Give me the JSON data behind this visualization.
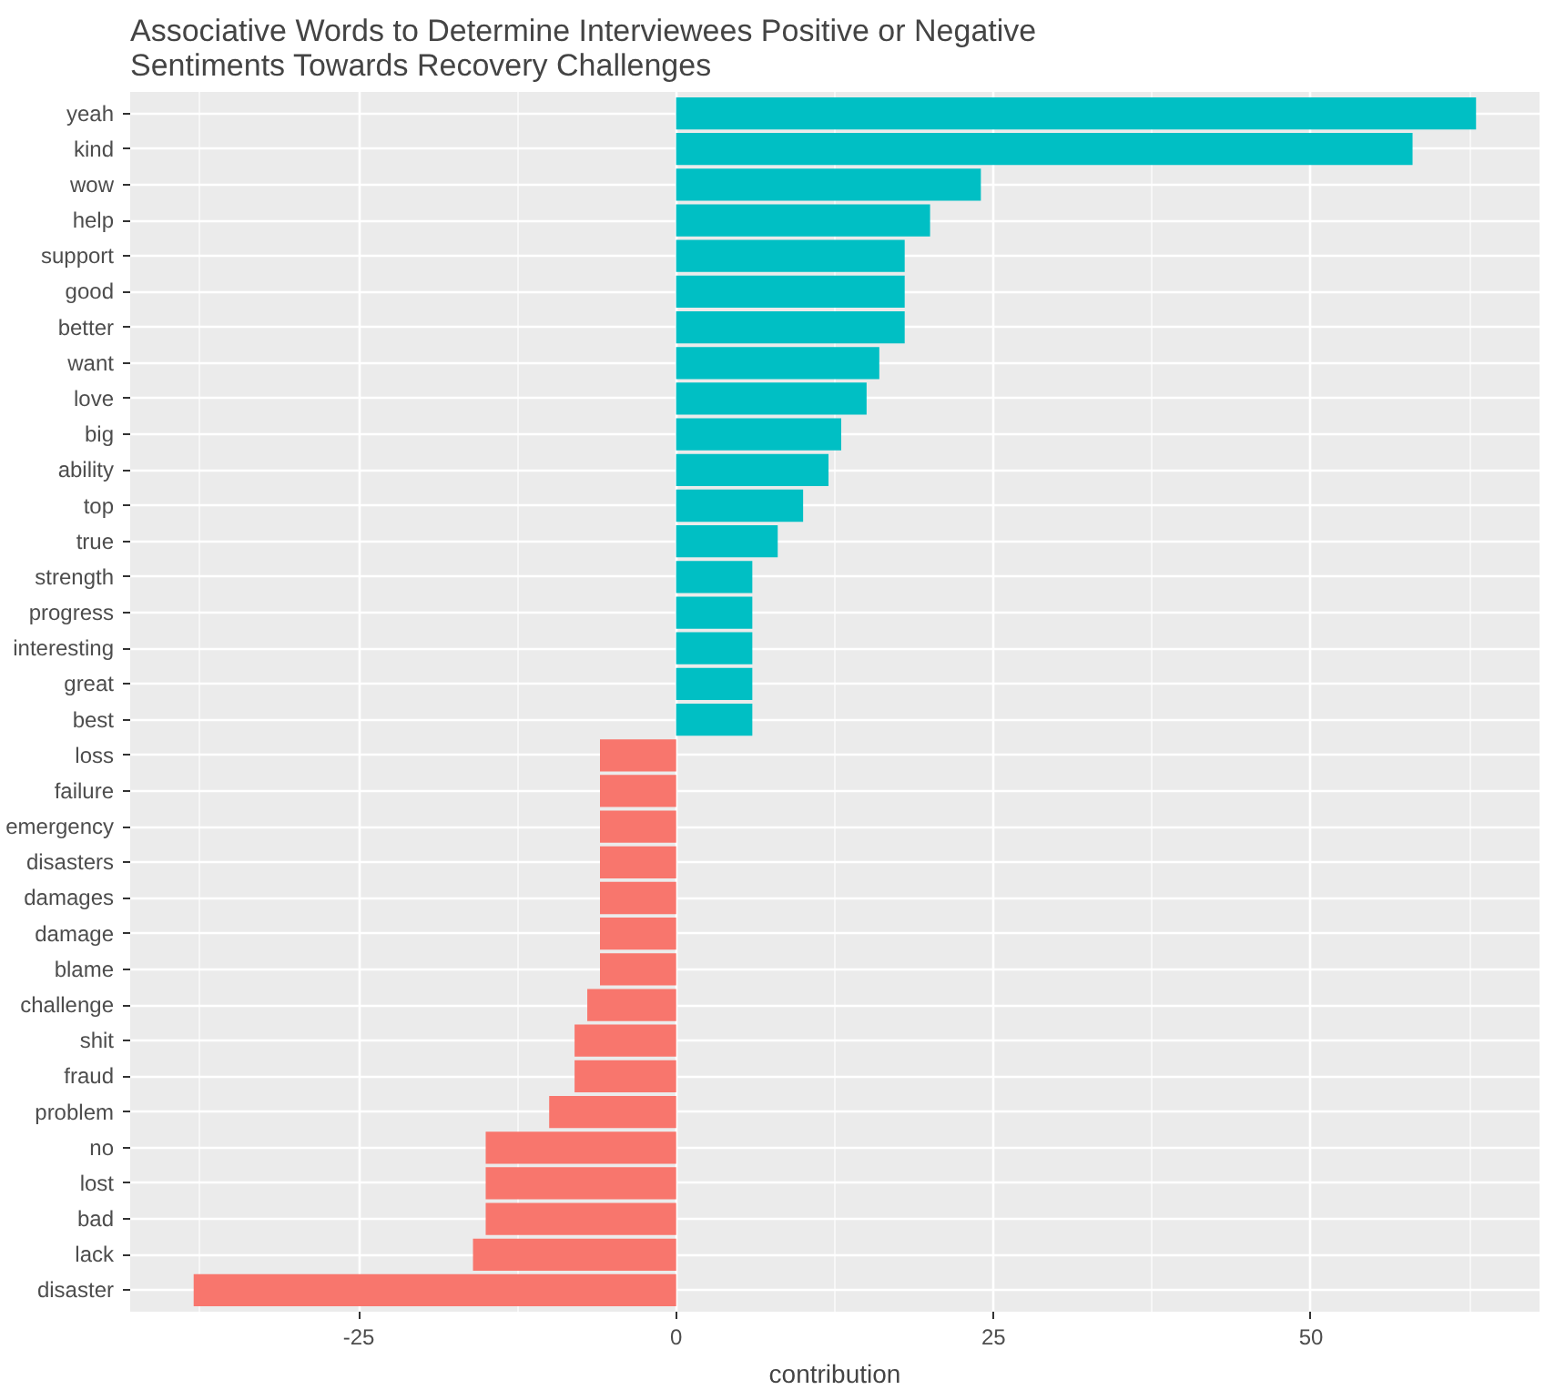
{
  "chart_data": {
    "type": "bar",
    "orientation": "horizontal",
    "title": "Associative Words to Determine Interviewees Positive or Negative\n Sentiments  Towards Recovery Challenges",
    "xlabel": "contribution",
    "categories": [
      "yeah",
      "kind",
      "wow",
      "help",
      "support",
      "good",
      "better",
      "want",
      "love",
      "big",
      "ability",
      "top",
      "true",
      "strength",
      "progress",
      "interesting",
      "great",
      "best",
      "loss",
      "failure",
      "emergency",
      "disasters",
      "damages",
      "damage",
      "blame",
      "challenge",
      "shit",
      "fraud",
      "problem",
      "no",
      "lost",
      "bad",
      "lack",
      "disaster"
    ],
    "values": [
      63,
      58,
      24,
      20,
      18,
      18,
      18,
      16,
      15,
      13,
      12,
      10,
      8,
      6,
      6,
      6,
      6,
      6,
      -6,
      -6,
      -6,
      -6,
      -6,
      -6,
      -6,
      -7,
      -8,
      -8,
      -10,
      -15,
      -15,
      -15,
      -16,
      -38
    ],
    "colors": [
      "#00bfc4",
      "#00bfc4",
      "#00bfc4",
      "#00bfc4",
      "#00bfc4",
      "#00bfc4",
      "#00bfc4",
      "#00bfc4",
      "#00bfc4",
      "#00bfc4",
      "#00bfc4",
      "#00bfc4",
      "#00bfc4",
      "#00bfc4",
      "#00bfc4",
      "#00bfc4",
      "#00bfc4",
      "#00bfc4",
      "#f8766d",
      "#f8766d",
      "#f8766d",
      "#f8766d",
      "#f8766d",
      "#f8766d",
      "#f8766d",
      "#f8766d",
      "#f8766d",
      "#f8766d",
      "#f8766d",
      "#f8766d",
      "#f8766d",
      "#f8766d",
      "#f8766d",
      "#f8766d"
    ],
    "xlim": [
      -43,
      68
    ],
    "xticks": [
      {
        "value": -25,
        "label": "-25"
      },
      0,
      25,
      50
    ],
    "grid": true
  }
}
